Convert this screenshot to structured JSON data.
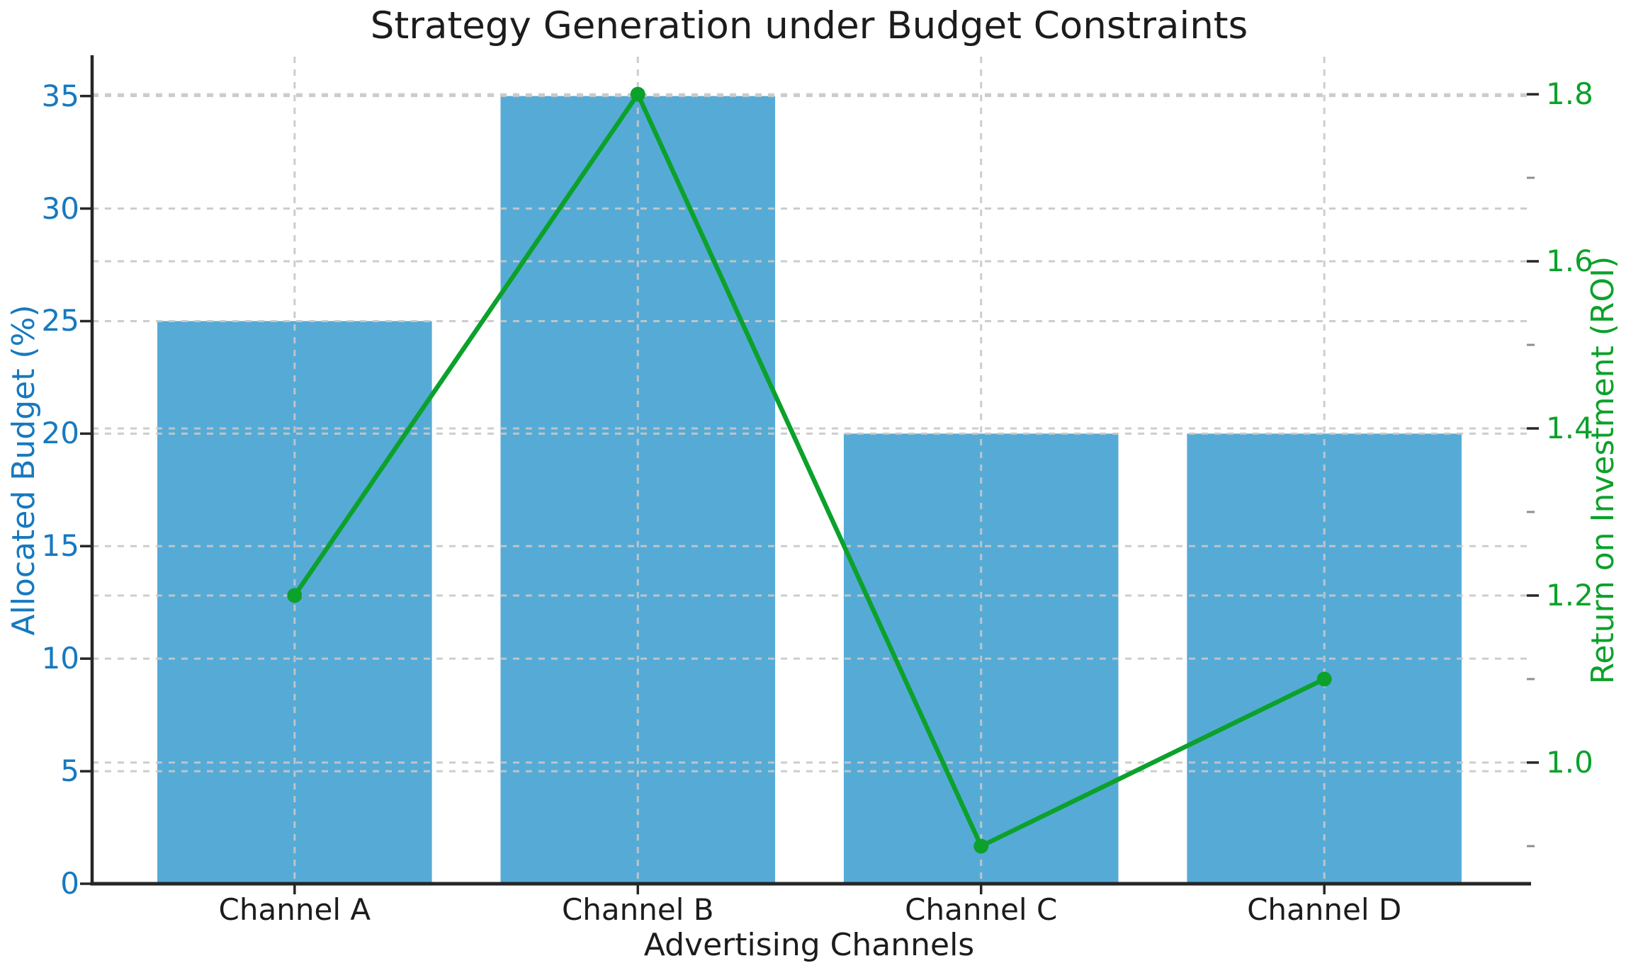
{
  "title": "Strategy Generation under Budget Constraints",
  "chart_data": {
    "type": "bar",
    "title": "Strategy Generation under Budget Constraints",
    "xlabel": "Advertising Channels",
    "ylabel_left": "Allocated Budget (%)",
    "ylabel_right": "Return on Investment (ROI)",
    "categories": [
      "Channel A",
      "Channel B",
      "Channel C",
      "Channel D"
    ],
    "series": [
      {
        "name": "Allocated Budget (%)",
        "type": "bar",
        "axis": "left",
        "values": [
          25,
          35,
          20,
          20
        ],
        "color": "#56abd6"
      },
      {
        "name": "Return on Investment (ROI)",
        "type": "line",
        "axis": "right",
        "values": [
          1.2,
          1.8,
          0.9,
          1.1
        ],
        "color": "#0ca12b",
        "marker": "circle"
      }
    ],
    "ylim_left": [
      0,
      36.75
    ],
    "ylim_right": [
      0.855,
      1.845
    ],
    "yticks_left": [
      "0",
      "5",
      "10",
      "15",
      "20",
      "25",
      "30",
      "35"
    ],
    "yticks_left_values": [
      0,
      5,
      10,
      15,
      20,
      25,
      30,
      35
    ],
    "yticks_right": [
      "1.0",
      "1.2",
      "1.4",
      "1.6",
      "1.8"
    ],
    "yticks_right_values": [
      1.0,
      1.2,
      1.4,
      1.6,
      1.8
    ],
    "yticks_right_minor_values": [
      0.9,
      1.1,
      1.3,
      1.5,
      1.7
    ],
    "grid": "dashed major gridlines for both y-axes plus vertical dashed lines at category centers, drawn above bars",
    "legend_position": "none",
    "colors": {
      "bar_fill": "#56abd6",
      "line": "#0ca12b",
      "left_axis_text": "#1779bf",
      "right_axis_text": "#0ca12b",
      "dark_text": "#1c1c1c",
      "grid": "#c8c8c8",
      "spine": "#262626",
      "minor_tick": "#8f8f8f",
      "background": "#ffffff"
    }
  }
}
